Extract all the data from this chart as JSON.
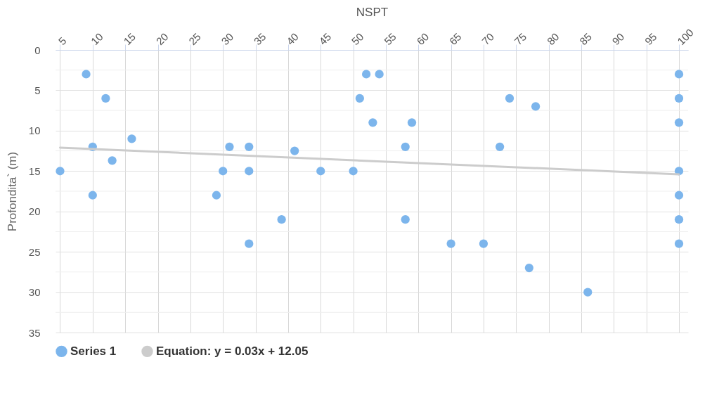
{
  "chart_data": {
    "type": "scatter",
    "xlabel": "NSPT",
    "ylabel": "Profondita` (m)",
    "xlim": [
      4.3,
      101.4
    ],
    "xticks": [
      5,
      10,
      15,
      20,
      25,
      30,
      35,
      40,
      45,
      50,
      55,
      60,
      65,
      70,
      75,
      80,
      85,
      90,
      95,
      100
    ],
    "ylim": [
      35,
      0
    ],
    "yticks": [
      0,
      {
        "value": 2.5,
        "label": null
      },
      5,
      {
        "value": 7.5,
        "label": null
      },
      10,
      {
        "value": 12.5,
        "label": null
      },
      15,
      {
        "value": 17.5,
        "label": null
      },
      20,
      {
        "value": 22.5,
        "label": null
      },
      25,
      {
        "value": 27.5,
        "label": null
      },
      30,
      {
        "value": 32.5,
        "label": null
      },
      35
    ],
    "grid": true,
    "legend": "bottom",
    "series": [
      {
        "name": "Series 1",
        "color": "#7cb5ec",
        "marker": "circle",
        "x": [
          9,
          12,
          10,
          5,
          10,
          13,
          16,
          29,
          30,
          31,
          34,
          34,
          34,
          39,
          41,
          45,
          50,
          51,
          52,
          53,
          54,
          58,
          58,
          59,
          65,
          70,
          72.5,
          74,
          78,
          77,
          86,
          100,
          100,
          100,
          100,
          100,
          100,
          100
        ],
        "values": [
          3,
          6,
          12,
          15,
          18,
          13.7,
          11,
          18,
          15,
          12,
          12,
          15,
          24,
          21,
          12.5,
          15,
          15,
          6,
          3,
          9,
          3,
          12,
          21,
          9,
          24,
          24,
          12,
          6,
          7,
          27,
          30,
          3,
          6,
          9,
          15,
          18,
          21,
          24
        ]
      },
      {
        "name": "Equation: y = 0.03x + 12.05",
        "type": "line",
        "color": "#cccccc",
        "x": [
          5,
          100
        ],
        "values": [
          12.1,
          15.4
        ]
      }
    ]
  }
}
